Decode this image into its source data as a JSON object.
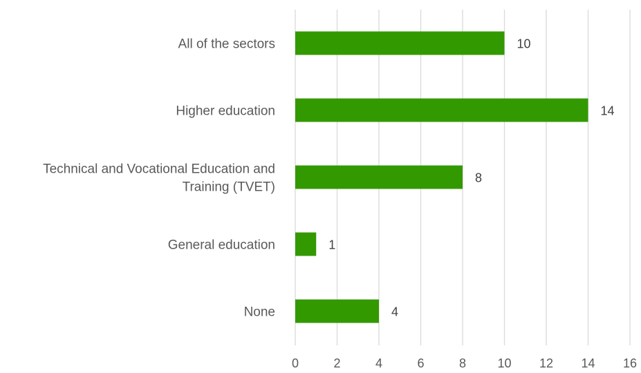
{
  "chart_data": {
    "type": "bar",
    "orientation": "horizontal",
    "categories": [
      [
        "All of the sectors"
      ],
      [
        "Higher education"
      ],
      [
        "Technical and Vocational Education and",
        "Training (TVET)"
      ],
      [
        "General education"
      ],
      [
        "None"
      ]
    ],
    "values": [
      10,
      14,
      8,
      1,
      4
    ],
    "xlim": [
      0,
      16
    ],
    "x_ticks": [
      0,
      2,
      4,
      6,
      8,
      10,
      12,
      14,
      16
    ],
    "x_tick_labels": [
      "0",
      "2",
      "4",
      "6",
      "8",
      "10",
      "12",
      "14",
      "16"
    ],
    "data_labels": [
      "10",
      "14",
      "8",
      "1",
      "4"
    ],
    "grid": "vertical",
    "legend": "none",
    "colors": {
      "bar": "#339900",
      "grid": "#d9d9d9"
    }
  }
}
